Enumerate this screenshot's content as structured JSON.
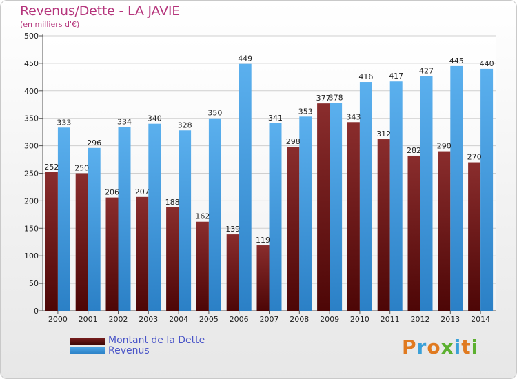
{
  "header": {
    "title": "Revenus/Dette - LA JAVIE",
    "subtitle": "(en milliers d'€)"
  },
  "chart_data": {
    "type": "bar",
    "categories": [
      "2000",
      "2001",
      "2002",
      "2003",
      "2004",
      "2005",
      "2006",
      "2007",
      "2008",
      "2009",
      "2010",
      "2011",
      "2012",
      "2013",
      "2014"
    ],
    "series": [
      {
        "name": "Montant de la Dette",
        "color": "#7a1e1e",
        "values": [
          252,
          250,
          206,
          207,
          188,
          162,
          139,
          119,
          298,
          377,
          343,
          312,
          282,
          290,
          270
        ]
      },
      {
        "name": "Revenus",
        "color": "#4aa3e6",
        "values": [
          333,
          296,
          334,
          340,
          328,
          350,
          449,
          341,
          353,
          378,
          416,
          417,
          427,
          445,
          440
        ]
      }
    ],
    "ylim": [
      0,
      500
    ],
    "yticks": [
      0,
      50,
      100,
      150,
      200,
      250,
      300,
      350,
      400,
      450,
      500
    ],
    "grid": true,
    "legend_position": "bottom-left"
  },
  "legend": {
    "debt_label": "Montant de la Dette",
    "revenue_label": "Revenus",
    "debt_color": "#7a1e1e",
    "revenue_color": "#4aa3e6"
  },
  "logo": {
    "text": "Proxiti",
    "colors": [
      "#e07a20",
      "#3aa0d8",
      "#e07a20",
      "#5cb030",
      "#3aa0d8",
      "#e07a20",
      "#5cb030"
    ]
  }
}
